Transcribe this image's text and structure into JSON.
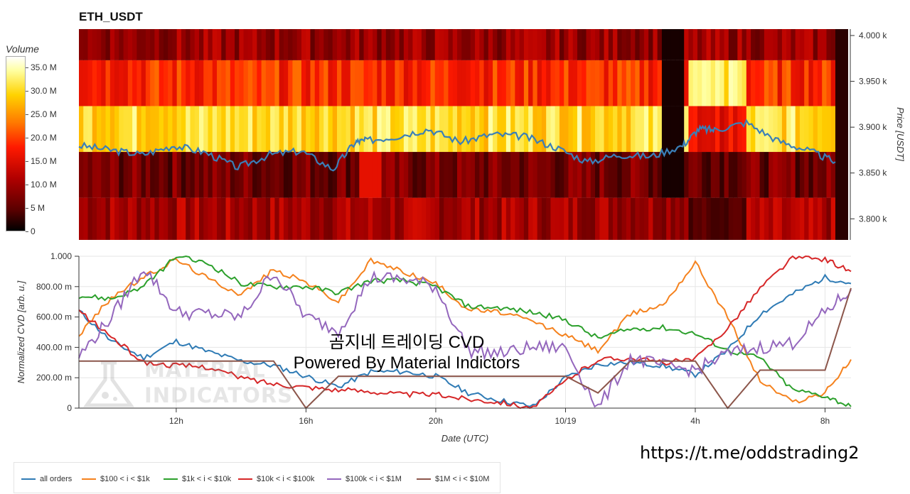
{
  "header": {
    "title": "ETH_USDT"
  },
  "watermark": {
    "line1": "곰지네 트레이딩 CVD",
    "line2": "Powered By Material Indictors"
  },
  "logo": {
    "line1": "MATERIAL",
    "line2": "INDICATORS"
  },
  "link": {
    "url": "https://t.me/oddstrading2"
  },
  "colors": {
    "blue": "#2f7bb5",
    "orange": "#f5821e",
    "green": "#2ca02c",
    "red": "#d62728",
    "purple": "#9467bd",
    "brown": "#8c564b"
  },
  "chart_data": [
    {
      "type": "heatmap",
      "title": "ETH_USDT",
      "colorbar": {
        "label": "Volume",
        "ticks": [
          "0",
          "5 M",
          "10.0 M",
          "15.0 M",
          "20.0 M",
          "25.0 M",
          "30.0 M",
          "35.0 M"
        ],
        "range": [
          0,
          37500000
        ]
      },
      "ylabel": "Price [USDT]",
      "y_ticks": [
        "3.800 k",
        "3.850 k",
        "3.900 k",
        "3.950 k",
        "4.000 k"
      ],
      "y_tick_values": [
        3800,
        3850,
        3900,
        3950,
        4000
      ],
      "ylim": [
        3777,
        4007
      ],
      "price_bands": [
        {
          "from": 3777,
          "to": 3823,
          "level": 0.28
        },
        {
          "from": 3823,
          "to": 3873,
          "level": 0.18
        },
        {
          "from": 3873,
          "to": 3923,
          "level": 0.82
        },
        {
          "from": 3923,
          "to": 3973,
          "level": 0.5
        },
        {
          "from": 3973,
          "to": 4007,
          "level": 0.25
        }
      ],
      "price_line": {
        "x": [
          9.0,
          10.0,
          11.0,
          12.0,
          13.0,
          14.0,
          15.0,
          16.0,
          17.0,
          17.7,
          18.0,
          19.0,
          20.0,
          21.0,
          22.0,
          23.0,
          24.0,
          25.0,
          26.0,
          27.0,
          28.0,
          28.5,
          29.0,
          30.0,
          31.0,
          32.0,
          32.8
        ],
        "y": [
          3880,
          3875,
          3870,
          3880,
          3872,
          3856,
          3870,
          3874,
          3854,
          3884,
          3885,
          3890,
          3898,
          3884,
          3892,
          3890,
          3878,
          3862,
          3870,
          3868,
          3880,
          3898,
          3897,
          3905,
          3885,
          3874,
          3862
        ]
      }
    },
    {
      "type": "line",
      "xlabel": "Date (UTC)",
      "ylabel": "Normalized CVD [arb. u.]",
      "x_ticks": [
        "12h",
        "16h",
        "20h",
        "10/19",
        "4h",
        "8h"
      ],
      "x_tick_values": [
        12,
        16,
        20,
        24,
        28,
        32
      ],
      "xlim": [
        9.0,
        32.8
      ],
      "y_ticks": [
        "0",
        "200.00 m",
        "400.00 m",
        "600.00 m",
        "800.00 m",
        "1.000"
      ],
      "y_tick_values": [
        0,
        0.2,
        0.4,
        0.6,
        0.8,
        1.0
      ],
      "ylim": [
        0,
        1.0
      ],
      "x": [
        9.0,
        10.0,
        11.0,
        12.0,
        13.0,
        14.0,
        15.0,
        16.0,
        17.0,
        18.0,
        19.0,
        20.0,
        21.0,
        22.0,
        23.0,
        24.0,
        25.0,
        26.0,
        27.0,
        28.0,
        29.0,
        30.0,
        31.0,
        32.0,
        32.8
      ],
      "series": [
        {
          "name": "all orders",
          "color": "#2f7bb5",
          "values": [
            0.64,
            0.44,
            0.33,
            0.44,
            0.37,
            0.31,
            0.28,
            0.21,
            0.14,
            0.24,
            0.24,
            0.21,
            0.1,
            0.05,
            0.01,
            0.2,
            0.29,
            0.3,
            0.28,
            0.22,
            0.38,
            0.62,
            0.75,
            0.86,
            0.82
          ]
        },
        {
          "name": "$100 < i < $1k",
          "color": "#f5821e",
          "values": [
            0.48,
            0.73,
            0.86,
            0.98,
            0.85,
            0.75,
            0.91,
            0.83,
            0.7,
            0.97,
            0.9,
            0.82,
            0.65,
            0.63,
            0.57,
            0.48,
            0.38,
            0.62,
            0.68,
            0.96,
            0.6,
            0.18,
            0.04,
            0.1,
            0.32
          ]
        },
        {
          "name": "$1k < i < $10k",
          "color": "#2ca02c",
          "values": [
            0.74,
            0.72,
            0.8,
            1.0,
            0.95,
            0.82,
            0.8,
            0.8,
            0.76,
            0.84,
            0.84,
            0.8,
            0.67,
            0.66,
            0.63,
            0.58,
            0.46,
            0.52,
            0.53,
            0.49,
            0.38,
            0.33,
            0.12,
            0.08,
            0.01
          ]
        },
        {
          "name": "$10k < i < $100k",
          "color": "#d62728",
          "values": [
            0.64,
            0.47,
            0.3,
            0.28,
            0.27,
            0.2,
            0.16,
            0.14,
            0.12,
            0.11,
            0.09,
            0.09,
            0.06,
            0.04,
            0.0,
            0.18,
            0.32,
            0.33,
            0.3,
            0.32,
            0.53,
            0.79,
            0.99,
            0.98,
            0.9
          ]
        },
        {
          "name": "$100k < i < $1M",
          "color": "#9467bd",
          "values": [
            0.34,
            0.6,
            0.93,
            0.63,
            0.62,
            0.6,
            0.9,
            0.6,
            0.51,
            0.86,
            0.85,
            0.8,
            0.38,
            0.36,
            0.4,
            0.4,
            0.0,
            0.33,
            0.28,
            0.25,
            0.36,
            0.4,
            0.43,
            0.63,
            0.78
          ]
        },
        {
          "name": "$1M < i < $10M",
          "color": "#8c564b",
          "values": [
            0.31,
            0.31,
            0.31,
            0.31,
            0.31,
            0.31,
            0.31,
            0.0,
            0.21,
            0.21,
            0.21,
            0.21,
            0.21,
            0.21,
            0.21,
            0.21,
            0.1,
            0.31,
            0.31,
            0.31,
            0.0,
            0.25,
            0.25,
            0.25,
            0.79
          ]
        }
      ]
    }
  ]
}
